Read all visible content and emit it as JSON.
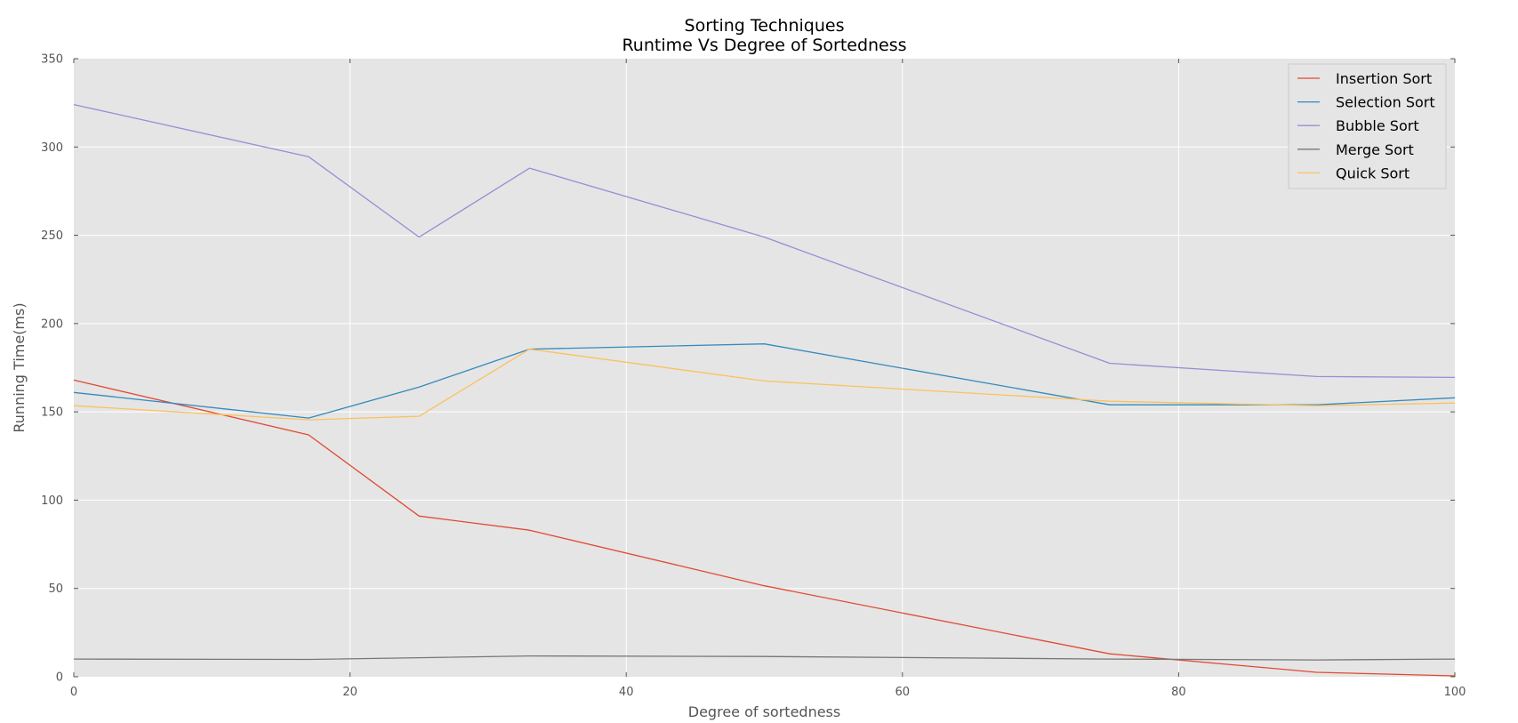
{
  "chart_data": {
    "type": "line",
    "title": "Sorting Techniques",
    "subtitle": "Runtime Vs Degree of Sortedness",
    "xlabel": "Degree of sortedness",
    "ylabel": "Running Time(ms)",
    "xlim": [
      0,
      100
    ],
    "ylim": [
      0,
      350
    ],
    "xticks": [
      0,
      20,
      40,
      60,
      80,
      100
    ],
    "yticks": [
      0,
      50,
      100,
      150,
      200,
      250,
      300,
      350
    ],
    "grid": true,
    "legend_position": "top-right",
    "x": [
      0,
      17,
      25,
      33,
      50,
      75,
      90,
      100
    ],
    "series": [
      {
        "name": "Insertion Sort",
        "color": "#e24a33",
        "values": [
          168,
          137,
          91,
          83,
          51.5,
          13,
          2.5,
          0.5
        ]
      },
      {
        "name": "Selection Sort",
        "color": "#348abd",
        "values": [
          161,
          146.5,
          164,
          185.5,
          188.5,
          154,
          154,
          158
        ]
      },
      {
        "name": "Bubble Sort",
        "color": "#988ed5",
        "values": [
          324,
          294.5,
          249,
          288,
          249,
          177.5,
          170,
          169.5
        ]
      },
      {
        "name": "Merge Sort",
        "color": "#777777",
        "values": [
          10,
          9.8,
          10.8,
          11.8,
          11.5,
          10,
          9.5,
          10
        ]
      },
      {
        "name": "Quick Sort",
        "color": "#fbc15e",
        "values": [
          153.5,
          145.5,
          147.5,
          185.5,
          167.5,
          156,
          153.5,
          155
        ]
      }
    ]
  }
}
